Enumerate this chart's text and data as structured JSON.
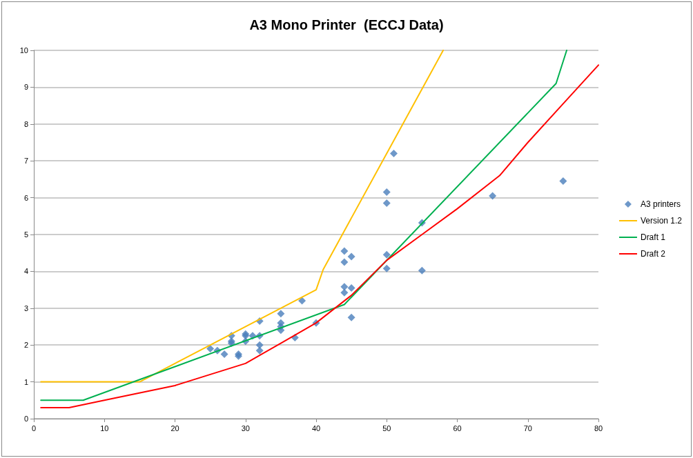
{
  "chart_data": {
    "type": "scatter",
    "title": "A3 Mono Printer  (ECCJ Data)",
    "xlim": [
      0,
      80
    ],
    "xticks": [
      0,
      10,
      20,
      30,
      40,
      50,
      60,
      70,
      80
    ],
    "ylim": [
      0,
      10
    ],
    "yticks": [
      0,
      1,
      2,
      3,
      4,
      5,
      6,
      7,
      8,
      9,
      10
    ],
    "grid": "y",
    "legend": "right",
    "series": [
      {
        "name": "A3 printers",
        "marker": "diamond",
        "color": "#4a7ebb",
        "x": [
          25,
          26,
          27,
          28,
          28,
          28,
          29,
          29,
          30,
          30,
          30,
          31,
          32,
          32,
          32,
          32,
          35,
          35,
          35,
          35,
          37,
          38,
          40,
          44,
          44,
          44,
          44,
          45,
          45,
          45,
          50,
          50,
          50,
          50,
          51,
          55,
          55,
          65,
          75
        ],
        "values": [
          1.9,
          1.85,
          1.75,
          2.25,
          2.1,
          2.05,
          1.75,
          1.7,
          2.3,
          2.25,
          2.1,
          2.25,
          2.65,
          2.25,
          2.0,
          1.85,
          2.85,
          2.6,
          2.5,
          2.4,
          2.2,
          3.2,
          2.6,
          4.55,
          4.25,
          3.58,
          3.42,
          4.4,
          3.55,
          2.75,
          6.15,
          5.85,
          4.45,
          4.08,
          7.2,
          5.32,
          4.02,
          6.05,
          6.45
        ]
      },
      {
        "name": "Version 1.2",
        "type": "line",
        "color": "#ffc000",
        "x": [
          1,
          15,
          40,
          41,
          58
        ],
        "values": [
          1,
          1,
          3.5,
          4.05,
          10
        ]
      },
      {
        "name": "Draft 1",
        "type": "line",
        "color": "#00b050",
        "x": [
          1,
          7,
          44,
          74,
          75.5
        ],
        "values": [
          0.5,
          0.5,
          3.1,
          9.1,
          10
        ]
      },
      {
        "name": "Draft 2",
        "type": "line",
        "color": "#ff0000",
        "x": [
          1,
          5,
          10,
          20,
          25,
          30,
          35,
          40,
          45,
          50,
          55,
          60,
          66,
          70,
          75,
          80
        ],
        "values": [
          0.3,
          0.3,
          0.5,
          0.9,
          1.2,
          1.5,
          2.05,
          2.6,
          3.35,
          4.3,
          5.0,
          5.7,
          6.6,
          7.5,
          8.55,
          9.6
        ]
      }
    ]
  }
}
